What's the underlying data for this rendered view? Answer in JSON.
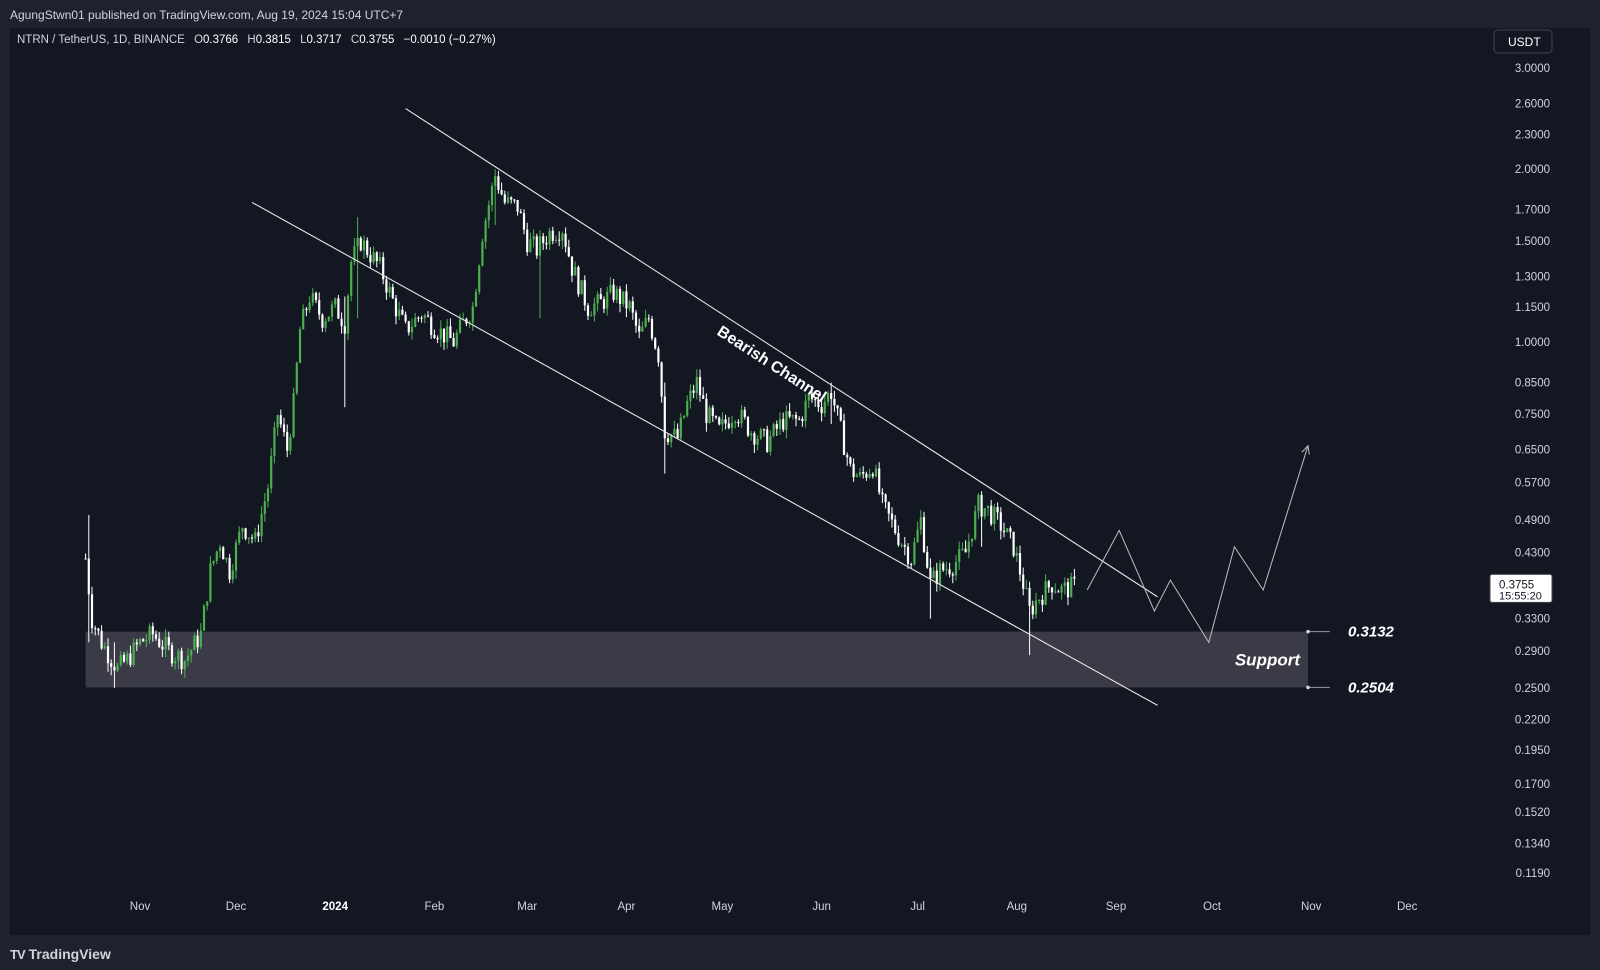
{
  "header": {
    "published_text": "AgungStwn01 published on TradingView.com, Aug 19, 2024 15:04 UTC+7"
  },
  "footer": {
    "logo_mark": "TV",
    "logo_text": "TradingView"
  },
  "colors": {
    "background": "#131722",
    "frame": "#1e222d",
    "bull_candle": "#4caf50",
    "bear_candle": "#ffffff",
    "support_zone": "#3a3b46",
    "trendline": "#e6e6e6"
  },
  "chart_data": {
    "type": "candlestick",
    "symbol_legend": {
      "symbol": "NTRN / TetherUS, 1D, BINANCE",
      "open_label": "O",
      "open": "0.3766",
      "high_label": "H",
      "high": "0.3815",
      "low_label": "L",
      "low": "0.3717",
      "close_label": "C",
      "close": "0.3755",
      "change": "−0.0010 (−0.27%)"
    },
    "currency_button": "USDT",
    "y_scale": "log",
    "ylim": [
      0.112,
      3.35
    ],
    "y_ticks": [
      "3.0000",
      "2.6000",
      "2.3000",
      "2.0000",
      "1.7000",
      "1.5000",
      "1.3000",
      "1.1500",
      "1.0000",
      "0.8500",
      "0.7500",
      "0.6500",
      "0.5700",
      "0.4900",
      "0.4300",
      "0.3300",
      "0.2900",
      "0.2500",
      "0.2200",
      "0.1950",
      "0.1700",
      "0.1520",
      "0.1340",
      "0.1190"
    ],
    "x_ticks": [
      {
        "label": "Nov",
        "date": "2023-11-01"
      },
      {
        "label": "Dec",
        "date": "2023-12-01"
      },
      {
        "label": "2024",
        "date": "2024-01-01",
        "bold": true
      },
      {
        "label": "Feb",
        "date": "2024-02-01"
      },
      {
        "label": "Mar",
        "date": "2024-03-01"
      },
      {
        "label": "Apr",
        "date": "2024-04-01"
      },
      {
        "label": "May",
        "date": "2024-05-01"
      },
      {
        "label": "Jun",
        "date": "2024-06-01"
      },
      {
        "label": "Jul",
        "date": "2024-07-01"
      },
      {
        "label": "Aug",
        "date": "2024-08-01"
      },
      {
        "label": "Sep",
        "date": "2024-09-01"
      },
      {
        "label": "Oct",
        "date": "2024-10-01"
      },
      {
        "label": "Nov",
        "date": "2024-11-01"
      },
      {
        "label": "Dec",
        "date": "2024-12-01"
      }
    ],
    "price_path": [
      [
        "2023-10-15",
        0.42
      ],
      [
        "2023-10-17",
        0.33
      ],
      [
        "2023-10-20",
        0.3
      ],
      [
        "2023-10-25",
        0.27
      ],
      [
        "2023-10-28",
        0.28
      ],
      [
        "2023-11-01",
        0.3
      ],
      [
        "2023-11-05",
        0.31
      ],
      [
        "2023-11-10",
        0.29
      ],
      [
        "2023-11-15",
        0.28
      ],
      [
        "2023-11-20",
        0.31
      ],
      [
        "2023-11-23",
        0.4
      ],
      [
        "2023-11-26",
        0.45
      ],
      [
        "2023-11-29",
        0.4
      ],
      [
        "2023-12-03",
        0.48
      ],
      [
        "2023-12-07",
        0.45
      ],
      [
        "2023-12-11",
        0.56
      ],
      [
        "2023-12-14",
        0.75
      ],
      [
        "2023-12-17",
        0.65
      ],
      [
        "2023-12-19",
        0.78
      ],
      [
        "2023-12-21",
        1.05
      ],
      [
        "2023-12-24",
        1.2
      ],
      [
        "2023-12-28",
        1.1
      ],
      [
        "2024-01-01",
        1.15
      ],
      [
        "2024-01-04",
        1.08
      ],
      [
        "2024-01-06",
        1.38
      ],
      [
        "2024-01-09",
        1.5
      ],
      [
        "2024-01-12",
        1.42
      ],
      [
        "2024-01-15",
        1.35
      ],
      [
        "2024-01-19",
        1.18
      ],
      [
        "2024-01-23",
        1.05
      ],
      [
        "2024-01-28",
        1.12
      ],
      [
        "2024-02-02",
        1.05
      ],
      [
        "2024-02-07",
        1.0
      ],
      [
        "2024-02-10",
        1.08
      ],
      [
        "2024-02-13",
        1.15
      ],
      [
        "2024-02-16",
        1.55
      ],
      [
        "2024-02-20",
        1.95
      ],
      [
        "2024-02-23",
        1.75
      ],
      [
        "2024-02-27",
        1.72
      ],
      [
        "2024-03-01",
        1.5
      ],
      [
        "2024-03-04",
        1.45
      ],
      [
        "2024-03-08",
        1.55
      ],
      [
        "2024-03-12",
        1.58
      ],
      [
        "2024-03-15",
        1.35
      ],
      [
        "2024-03-20",
        1.15
      ],
      [
        "2024-03-24",
        1.17
      ],
      [
        "2024-03-28",
        1.22
      ],
      [
        "2024-04-02",
        1.15
      ],
      [
        "2024-04-05",
        1.02
      ],
      [
        "2024-04-08",
        1.1
      ],
      [
        "2024-04-11",
        0.95
      ],
      [
        "2024-04-13",
        0.7
      ],
      [
        "2024-04-17",
        0.68
      ],
      [
        "2024-04-20",
        0.78
      ],
      [
        "2024-04-23",
        0.85
      ],
      [
        "2024-04-26",
        0.75
      ],
      [
        "2024-04-30",
        0.7
      ],
      [
        "2024-05-05",
        0.76
      ],
      [
        "2024-05-10",
        0.7
      ],
      [
        "2024-05-15",
        0.67
      ],
      [
        "2024-05-20",
        0.73
      ],
      [
        "2024-05-25",
        0.73
      ],
      [
        "2024-05-28",
        0.8
      ],
      [
        "2024-06-01",
        0.78
      ],
      [
        "2024-06-04",
        0.82
      ],
      [
        "2024-06-07",
        0.7
      ],
      [
        "2024-06-10",
        0.6
      ],
      [
        "2024-06-13",
        0.58
      ],
      [
        "2024-06-17",
        0.61
      ],
      [
        "2024-06-20",
        0.52
      ],
      [
        "2024-06-25",
        0.46
      ],
      [
        "2024-06-29",
        0.42
      ],
      [
        "2024-07-02",
        0.49
      ],
      [
        "2024-07-05",
        0.38
      ],
      [
        "2024-07-08",
        0.4
      ],
      [
        "2024-07-12",
        0.41
      ],
      [
        "2024-07-16",
        0.43
      ],
      [
        "2024-07-20",
        0.52
      ],
      [
        "2024-07-23",
        0.51
      ],
      [
        "2024-07-27",
        0.48
      ],
      [
        "2024-07-31",
        0.44
      ],
      [
        "2024-08-03",
        0.38
      ],
      [
        "2024-08-05",
        0.34
      ],
      [
        "2024-08-08",
        0.36
      ],
      [
        "2024-08-12",
        0.38
      ],
      [
        "2024-08-15",
        0.37
      ],
      [
        "2024-08-19",
        0.3755
      ]
    ],
    "wick_spikes": [
      [
        "2023-10-16",
        0.5,
        0.3
      ],
      [
        "2023-10-24",
        0.3,
        0.25
      ],
      [
        "2024-01-04",
        1.2,
        0.77
      ],
      [
        "2024-01-08",
        1.65,
        1.1
      ],
      [
        "2024-02-20",
        2.0,
        1.6
      ],
      [
        "2024-03-05",
        1.55,
        1.1
      ],
      [
        "2024-04-13",
        0.85,
        0.59
      ],
      [
        "2024-06-04",
        0.85,
        0.72
      ],
      [
        "2024-07-05",
        0.42,
        0.33
      ],
      [
        "2024-07-21",
        0.55,
        0.44
      ],
      [
        "2024-08-05",
        0.36,
        0.285
      ]
    ],
    "annotations": {
      "channel_label": "Bearish Channel",
      "upper_channel": [
        [
          "2024-01-23",
          2.55
        ],
        [
          "2024-09-14",
          0.36
        ]
      ],
      "lower_channel": [
        [
          "2023-12-06",
          1.75
        ],
        [
          "2024-09-14",
          0.233
        ]
      ],
      "projection_path": [
        [
          "2024-08-23",
          0.37
        ],
        [
          "2024-09-02",
          0.47
        ],
        [
          "2024-09-13",
          0.34
        ],
        [
          "2024-09-18",
          0.385
        ],
        [
          "2024-09-30",
          0.3
        ],
        [
          "2024-10-08",
          0.44
        ],
        [
          "2024-10-17",
          0.37
        ],
        [
          "2024-10-31",
          0.66
        ]
      ],
      "support_zone": {
        "label": "Support",
        "from": "2023-10-15",
        "to": "2024-10-31",
        "high": 0.3132,
        "low": 0.2504
      },
      "support_high_label": "0.3132",
      "support_low_label": "0.2504"
    },
    "last_price": {
      "value": "0.3755",
      "countdown": "15:55:20"
    }
  }
}
